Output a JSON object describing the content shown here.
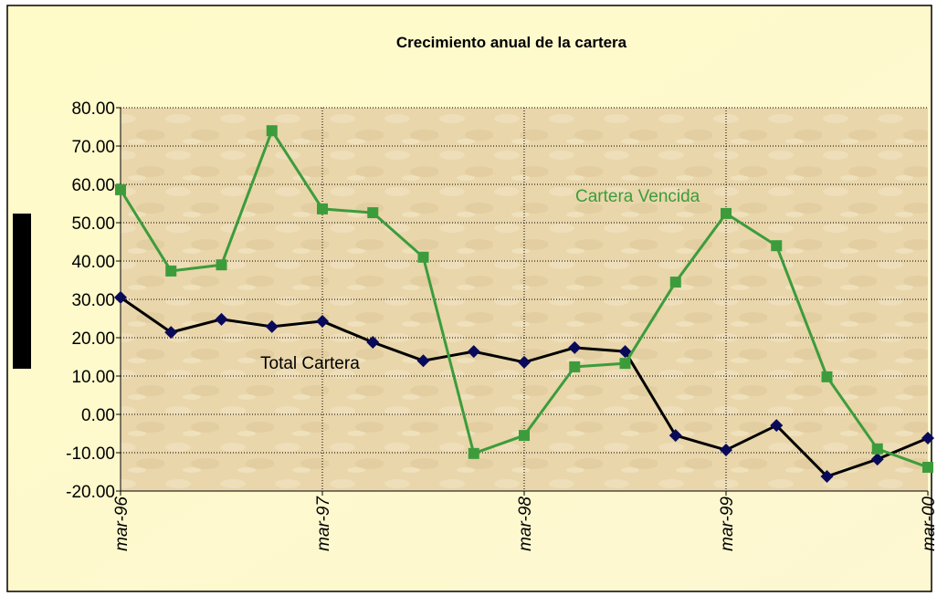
{
  "chart_data": {
    "type": "line",
    "title": "Crecimiento anual de la cartera",
    "categories": [
      "mar-96",
      null,
      null,
      null,
      "mar-97",
      null,
      null,
      null,
      "mar-98",
      null,
      null,
      null,
      "mar-99",
      null,
      null,
      null,
      "mar-00"
    ],
    "series": [
      {
        "name": "Total Cartera",
        "color": "#000000",
        "marker_color": "#0a0a5a",
        "values": [
          30.5,
          21.4,
          24.8,
          22.9,
          24.3,
          18.8,
          14.0,
          16.4,
          13.6,
          17.4,
          16.4,
          -5.5,
          -9.3,
          -2.9,
          -16.2,
          -11.7,
          -6.2
        ]
      },
      {
        "name": "Cartera Vencida",
        "color": "#3c9c3c",
        "marker_color": "#3c9c3c",
        "values": [
          58.6,
          37.4,
          39.0,
          74.0,
          53.6,
          52.6,
          41.0,
          -10.2,
          -5.5,
          12.4,
          13.3,
          34.5,
          52.4,
          44.0,
          9.8,
          -9.0,
          -13.8
        ]
      }
    ],
    "ylim": [
      -20,
      80
    ],
    "yticks": [
      {
        "value": -20,
        "label": "-20.00"
      },
      {
        "value": -10,
        "label": "-10.00"
      },
      {
        "value": 0,
        "label": "0.00"
      },
      {
        "value": 10,
        "label": "10.00"
      },
      {
        "value": 20,
        "label": "20.00"
      },
      {
        "value": 30,
        "label": "30.00"
      },
      {
        "value": 40,
        "label": "40.00"
      },
      {
        "value": 50,
        "label": "50.00"
      },
      {
        "value": 60,
        "label": "60.00"
      },
      {
        "value": 70,
        "label": "70.00"
      },
      {
        "value": 80,
        "label": "80.00"
      }
    ],
    "grid": true
  }
}
